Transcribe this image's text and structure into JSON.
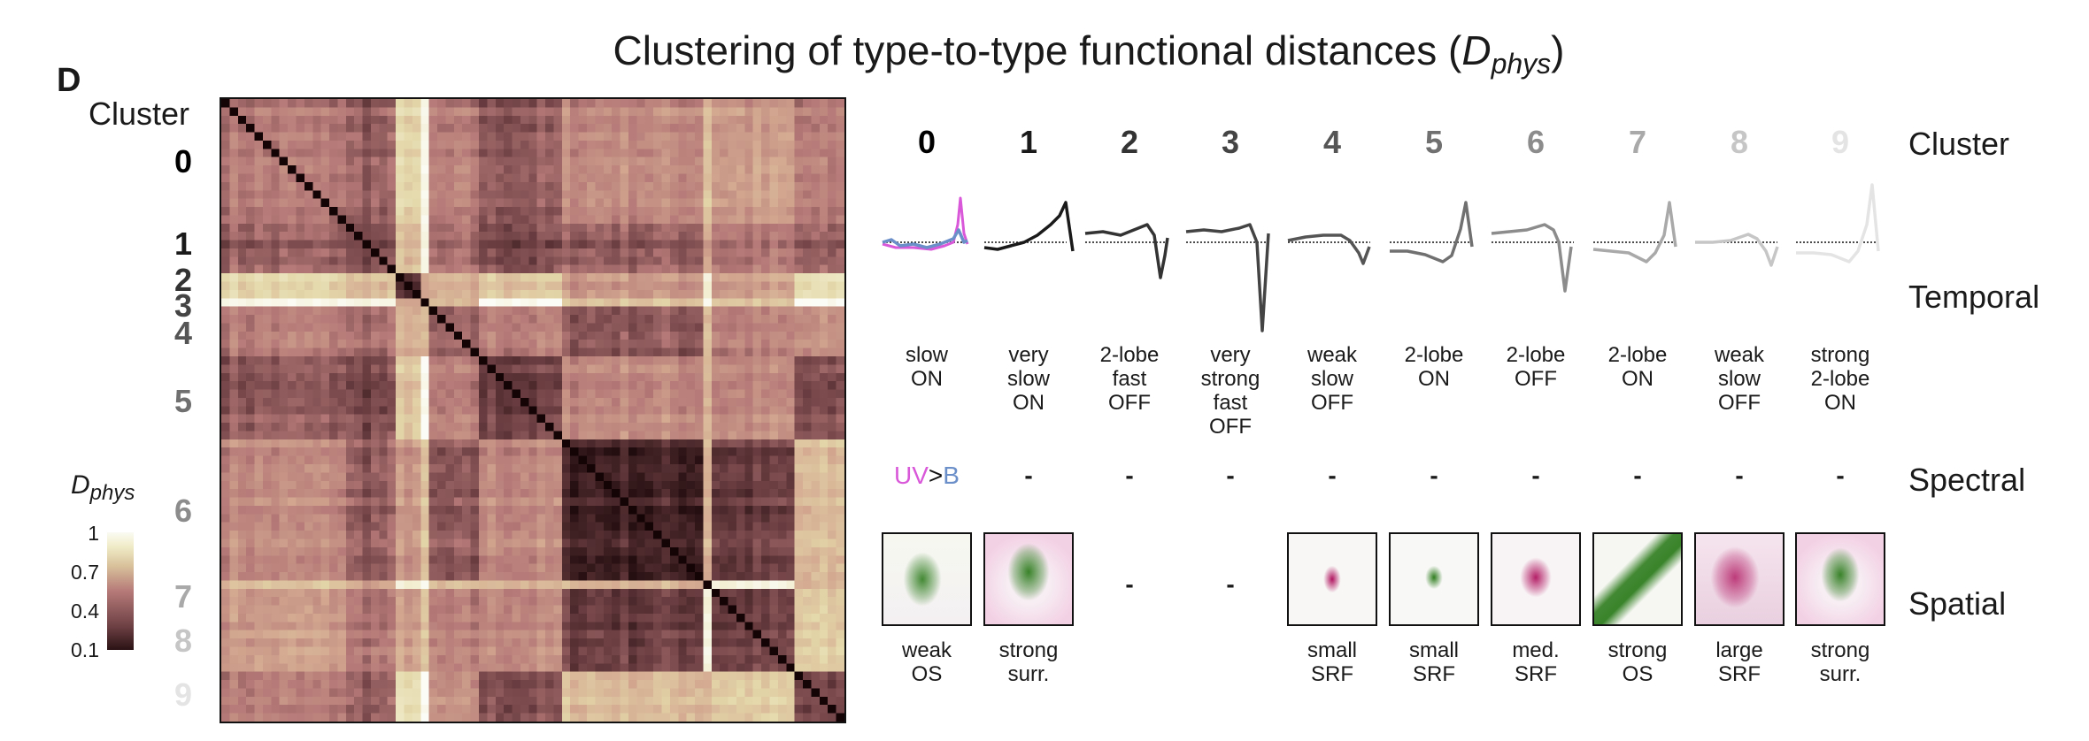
{
  "figure": {
    "panel_letter": "D",
    "title_prefix": "Clustering of type-to-type functional distances (",
    "title_symbol": "D",
    "title_subscript": "phys",
    "title_suffix": ")"
  },
  "left": {
    "cluster_title": "Cluster",
    "cluster_labels": [
      "0",
      "1",
      "2",
      "3",
      "4",
      "5",
      "6",
      "7",
      "8",
      "9"
    ]
  },
  "colorbar": {
    "label_symbol": "D",
    "label_subscript": "phys",
    "ticks": [
      "1",
      "0.7",
      "0.4",
      "0.1"
    ]
  },
  "right": {
    "row_labels": {
      "cluster": "Cluster",
      "temporal": "Temporal",
      "spectral": "Spectral",
      "spatial": "Spatial"
    },
    "clusters": [
      {
        "id": "0",
        "temporal": [
          "slow",
          "ON"
        ],
        "spectral": "",
        "spatial": [
          "weak",
          "OS"
        ]
      },
      {
        "id": "1",
        "temporal": [
          "very",
          "slow",
          "ON"
        ],
        "spectral": "-",
        "spatial": [
          "strong",
          "surr."
        ]
      },
      {
        "id": "2",
        "temporal": [
          "2-lobe",
          "fast",
          "OFF"
        ],
        "spectral": "-",
        "spatial": null
      },
      {
        "id": "3",
        "temporal": [
          "very",
          "strong",
          "fast",
          "OFF"
        ],
        "spectral": "-",
        "spatial": null
      },
      {
        "id": "4",
        "temporal": [
          "weak",
          "slow",
          "OFF"
        ],
        "spectral": "-",
        "spatial": [
          "small",
          "SRF"
        ]
      },
      {
        "id": "5",
        "temporal": [
          "2-lobe",
          "ON"
        ],
        "spectral": "-",
        "spatial": [
          "small",
          "SRF"
        ]
      },
      {
        "id": "6",
        "temporal": [
          "2-lobe",
          "OFF"
        ],
        "spectral": "-",
        "spatial": [
          "med.",
          "SRF"
        ]
      },
      {
        "id": "7",
        "temporal": [
          "2-lobe",
          "ON"
        ],
        "spectral": "-",
        "spatial": [
          "strong",
          "OS"
        ]
      },
      {
        "id": "8",
        "temporal": [
          "weak",
          "slow",
          "OFF"
        ],
        "spectral": "-",
        "spatial": [
          "large",
          "SRF"
        ]
      },
      {
        "id": "9",
        "temporal": [
          "strong",
          "2-lobe",
          "ON"
        ],
        "spectral": "-",
        "spatial": [
          "strong",
          "surr."
        ]
      }
    ],
    "spectral_cluster0": {
      "uv": "UV",
      "gt": ">",
      "b": "B"
    },
    "missing_spatial": "-"
  },
  "colors": {
    "cluster_greys": [
      "#000000",
      "#1a1a1a",
      "#333333",
      "#444444",
      "#555555",
      "#707070",
      "#8c8c8c",
      "#a9a9a9",
      "#c6c6c6",
      "#e4e4e4"
    ],
    "uv": "#d957d9",
    "blue": "#6b8fc9",
    "rf_on": "#2f7d1f",
    "rf_off": "#b0145f"
  },
  "chart_data": {
    "type": "heatmap",
    "title": "Clustering of type-to-type functional distances (Dphys)",
    "colorbar_label": "Dphys",
    "color_range": [
      0.1,
      1
    ],
    "colormap": "dark brown - pink - cream - white",
    "cluster_sizes": [
      15,
      6,
      3,
      1,
      6,
      10,
      17,
      1,
      10,
      6
    ],
    "block_mean_distance": [
      [
        0.4,
        0.33,
        0.7,
        0.92,
        0.4,
        0.32,
        0.45,
        0.65,
        0.5,
        0.4
      ],
      [
        0.33,
        0.27,
        0.6,
        0.9,
        0.35,
        0.27,
        0.33,
        0.55,
        0.38,
        0.32
      ],
      [
        0.7,
        0.6,
        0.22,
        0.5,
        0.55,
        0.65,
        0.5,
        0.9,
        0.52,
        0.75
      ],
      [
        0.92,
        0.9,
        0.5,
        0.0,
        0.55,
        0.95,
        0.6,
        0.95,
        0.6,
        0.95
      ],
      [
        0.4,
        0.35,
        0.55,
        0.55,
        0.3,
        0.4,
        0.3,
        0.6,
        0.4,
        0.45
      ],
      [
        0.32,
        0.27,
        0.65,
        0.95,
        0.4,
        0.25,
        0.45,
        0.6,
        0.45,
        0.28
      ],
      [
        0.45,
        0.33,
        0.5,
        0.6,
        0.3,
        0.45,
        0.16,
        0.6,
        0.24,
        0.6
      ],
      [
        0.65,
        0.55,
        0.9,
        0.95,
        0.6,
        0.6,
        0.6,
        0.0,
        0.92,
        0.6
      ],
      [
        0.5,
        0.38,
        0.52,
        0.6,
        0.4,
        0.45,
        0.24,
        0.92,
        0.24,
        0.65
      ],
      [
        0.4,
        0.32,
        0.75,
        0.95,
        0.45,
        0.28,
        0.6,
        0.6,
        0.65,
        0.25
      ]
    ],
    "diagonal": 0
  }
}
